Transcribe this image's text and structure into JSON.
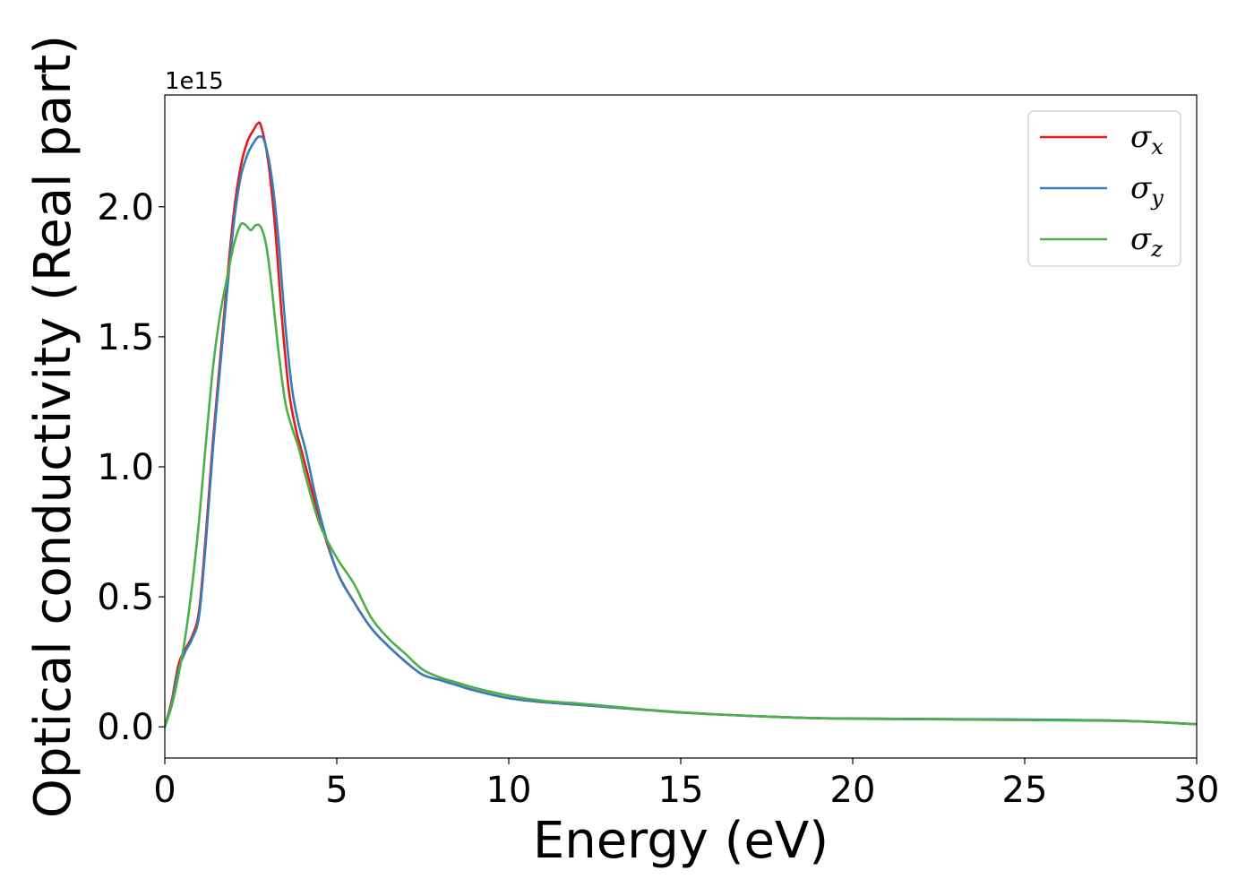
{
  "chart_data": {
    "type": "line",
    "xlabel": "Energy (eV)",
    "ylabel": "Optical conductivity (Real part)",
    "y_offset_label": "1e15",
    "xlim": [
      0,
      30
    ],
    "ylim": [
      -0.12,
      2.43
    ],
    "x_ticks": [
      0,
      5,
      10,
      15,
      20,
      25,
      30
    ],
    "x_tick_labels": [
      "0",
      "5",
      "10",
      "15",
      "20",
      "25",
      "30"
    ],
    "y_ticks": [
      0.0,
      0.5,
      1.0,
      1.5,
      2.0
    ],
    "y_tick_labels": [
      "0.0",
      "0.5",
      "1.0",
      "1.5",
      "2.0"
    ],
    "grid": false,
    "legend_position": "top-right",
    "series": [
      {
        "name": "σx",
        "symbol": "σ",
        "subscript": "x",
        "color": "#e41a1c",
        "x": [
          0,
          0.2,
          0.4,
          0.6,
          0.8,
          1.0,
          1.2,
          1.4,
          1.6,
          1.8,
          2.0,
          2.2,
          2.4,
          2.6,
          2.7,
          2.8,
          3.0,
          3.2,
          3.4,
          3.6,
          3.8,
          4.0,
          4.5,
          5.0,
          5.5,
          6.0,
          6.5,
          7.0,
          7.5,
          8.0,
          8.5,
          9.0,
          10,
          11,
          12,
          13,
          14,
          15,
          16,
          17,
          18,
          19,
          20,
          22,
          24,
          26,
          27.5,
          28.5,
          29.3,
          30
        ],
        "y": [
          0.0,
          0.1,
          0.24,
          0.3,
          0.35,
          0.45,
          0.75,
          1.1,
          1.4,
          1.7,
          1.97,
          2.15,
          2.25,
          2.3,
          2.32,
          2.31,
          2.18,
          1.93,
          1.58,
          1.3,
          1.15,
          1.05,
          0.8,
          0.6,
          0.48,
          0.38,
          0.31,
          0.25,
          0.2,
          0.18,
          0.16,
          0.14,
          0.11,
          0.095,
          0.085,
          0.075,
          0.065,
          0.055,
          0.048,
          0.042,
          0.037,
          0.033,
          0.032,
          0.03,
          0.028,
          0.026,
          0.024,
          0.02,
          0.015,
          0.01
        ]
      },
      {
        "name": "σy",
        "symbol": "σ",
        "subscript": "y",
        "color": "#377eb8",
        "x": [
          0,
          0.2,
          0.4,
          0.6,
          0.8,
          1.0,
          1.2,
          1.4,
          1.6,
          1.8,
          2.0,
          2.2,
          2.4,
          2.6,
          2.75,
          2.9,
          3.1,
          3.3,
          3.5,
          3.7,
          3.9,
          4.1,
          4.5,
          5.0,
          5.5,
          6.0,
          6.5,
          7.0,
          7.5,
          8.0,
          8.5,
          9.0,
          10,
          11,
          12,
          13,
          14,
          15,
          16,
          17,
          18,
          19,
          20,
          22,
          24,
          26,
          27.5,
          28.5,
          29.3,
          30
        ],
        "y": [
          0.0,
          0.09,
          0.22,
          0.29,
          0.34,
          0.43,
          0.72,
          1.07,
          1.37,
          1.66,
          1.93,
          2.11,
          2.2,
          2.25,
          2.27,
          2.25,
          2.12,
          1.88,
          1.55,
          1.3,
          1.16,
          1.06,
          0.82,
          0.6,
          0.48,
          0.38,
          0.31,
          0.25,
          0.2,
          0.18,
          0.16,
          0.14,
          0.11,
          0.095,
          0.085,
          0.075,
          0.065,
          0.055,
          0.048,
          0.042,
          0.037,
          0.033,
          0.032,
          0.03,
          0.029,
          0.027,
          0.024,
          0.02,
          0.015,
          0.01
        ]
      },
      {
        "name": "σz",
        "symbol": "σ",
        "subscript": "z",
        "color": "#4daf4a",
        "x": [
          0,
          0.2,
          0.4,
          0.6,
          0.8,
          1.0,
          1.2,
          1.4,
          1.6,
          1.8,
          2.0,
          2.2,
          2.35,
          2.5,
          2.65,
          2.8,
          2.95,
          3.1,
          3.3,
          3.5,
          3.7,
          3.9,
          4.1,
          4.5,
          5.0,
          5.5,
          6.0,
          6.5,
          7.0,
          7.5,
          8.0,
          8.5,
          9.0,
          10,
          11,
          12,
          13,
          14,
          15,
          16,
          17,
          18,
          19,
          20,
          22,
          24,
          26,
          27.5,
          28.5,
          29.3,
          30
        ],
        "y": [
          0.0,
          0.08,
          0.2,
          0.35,
          0.55,
          0.8,
          1.1,
          1.38,
          1.58,
          1.72,
          1.85,
          1.93,
          1.93,
          1.91,
          1.93,
          1.92,
          1.85,
          1.7,
          1.45,
          1.25,
          1.15,
          1.07,
          0.96,
          0.78,
          0.65,
          0.55,
          0.42,
          0.34,
          0.28,
          0.22,
          0.19,
          0.17,
          0.15,
          0.12,
          0.1,
          0.09,
          0.078,
          0.066,
          0.056,
          0.048,
          0.042,
          0.037,
          0.033,
          0.031,
          0.029,
          0.027,
          0.025,
          0.023,
          0.02,
          0.015,
          0.01
        ]
      }
    ]
  }
}
